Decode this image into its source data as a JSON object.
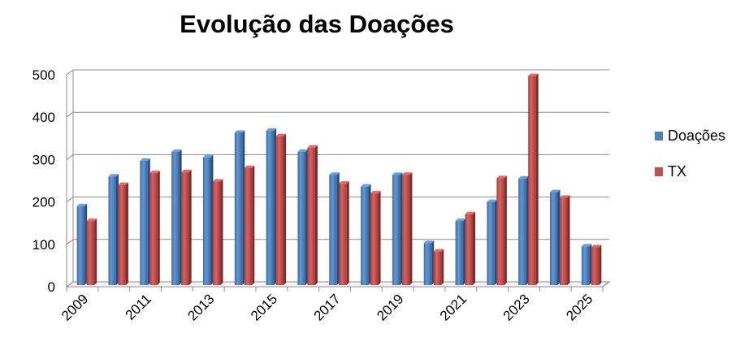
{
  "chart_data": {
    "type": "bar",
    "title": "Evolução das Doações",
    "categories": [
      "2009",
      "2010",
      "2011",
      "2012",
      "2013",
      "2014",
      "2015",
      "2016",
      "2017",
      "2018",
      "2019",
      "2020",
      "2021",
      "2022",
      "2023",
      "2024",
      "2025"
    ],
    "tick_labels_shown": [
      "2009",
      "2011",
      "2013",
      "2015",
      "2017",
      "2019",
      "2021",
      "2023",
      "2025"
    ],
    "series": [
      {
        "name": "Doações",
        "color": "#4F81BD",
        "values": [
          190,
          260,
          297,
          318,
          305,
          363,
          368,
          318,
          264,
          236,
          264,
          103,
          155,
          200,
          255,
          223,
          95
        ]
      },
      {
        "name": "TX",
        "color": "#C0504D",
        "values": [
          155,
          240,
          268,
          270,
          248,
          280,
          355,
          328,
          243,
          220,
          264,
          83,
          171,
          256,
          497,
          210,
          93
        ]
      }
    ],
    "ylim": [
      0,
      500
    ],
    "yticks": [
      0,
      100,
      200,
      300,
      400,
      500
    ],
    "grid": true,
    "legend_position": "right",
    "style": "3d-clustered-column"
  }
}
